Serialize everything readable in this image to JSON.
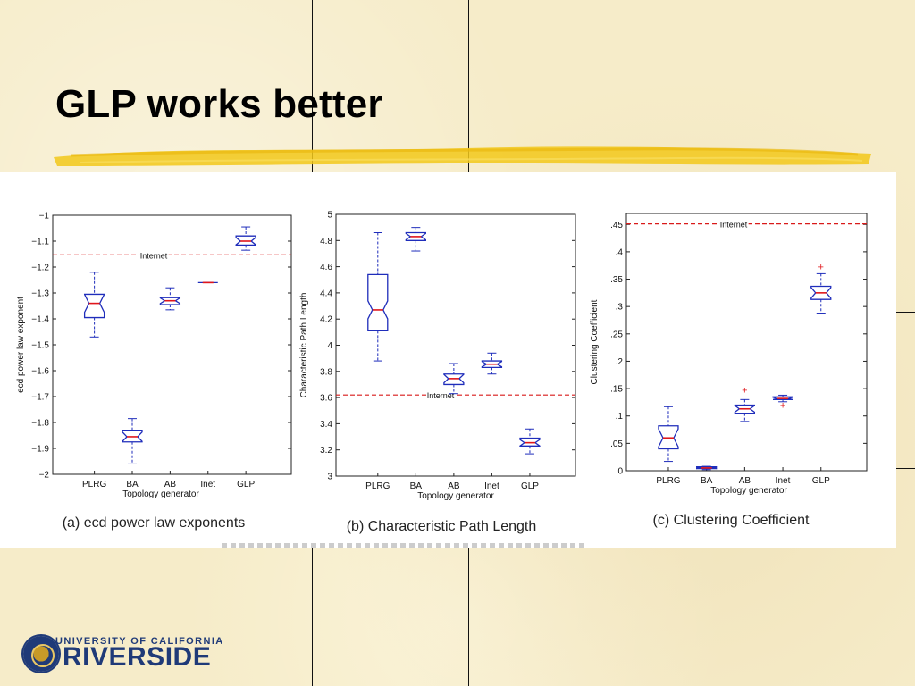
{
  "slide": {
    "title": "GLP works better",
    "footer_logo": {
      "line1": "UNIVERSITY OF CALIFORNIA",
      "line2": "RIVERSIDE"
    }
  },
  "chart_data": [
    {
      "type": "boxplot",
      "caption": "(a) ecd power law exponents",
      "xlabel": "Topology generator",
      "ylabel": "ecd power law exponent",
      "categories": [
        "PLRG",
        "BA",
        "AB",
        "Inet",
        "GLP"
      ],
      "ylim": [
        -2,
        -1
      ],
      "yticks": [
        -1,
        -1.1,
        -1.2,
        -1.3,
        -1.4,
        -1.5,
        -1.6,
        -1.7,
        -1.8,
        -1.9,
        -2
      ],
      "reference": {
        "label": "Internet",
        "value": -1.153
      },
      "boxes": [
        {
          "name": "PLRG",
          "whisker_low": -1.47,
          "q1": -1.395,
          "median": -1.34,
          "q3": -1.305,
          "whisker_high": -1.22,
          "outliers": []
        },
        {
          "name": "BA",
          "whisker_low": -1.96,
          "q1": -1.875,
          "median": -1.855,
          "q3": -1.83,
          "whisker_high": -1.785,
          "outliers": []
        },
        {
          "name": "AB",
          "whisker_low": -1.365,
          "q1": -1.345,
          "median": -1.33,
          "q3": -1.318,
          "whisker_high": -1.28,
          "outliers": []
        },
        {
          "name": "Inet",
          "whisker_low": -1.26,
          "q1": -1.26,
          "median": -1.26,
          "q3": -1.26,
          "whisker_high": -1.26,
          "outliers": []
        },
        {
          "name": "GLP",
          "whisker_low": -1.135,
          "q1": -1.115,
          "median": -1.1,
          "q3": -1.08,
          "whisker_high": -1.045,
          "outliers": []
        }
      ]
    },
    {
      "type": "boxplot",
      "caption": "(b) Characteristic Path Length",
      "xlabel": "Topology generator",
      "ylabel": "Characteristic Path Length",
      "categories": [
        "PLRG",
        "BA",
        "AB",
        "Inet",
        "GLP"
      ],
      "ylim": [
        3,
        5
      ],
      "yticks": [
        3,
        3.2,
        3.4,
        3.6,
        3.8,
        4,
        4.2,
        4.4,
        4.6,
        4.8,
        5
      ],
      "reference": {
        "label": "Internet",
        "value": 3.62
      },
      "boxes": [
        {
          "name": "PLRG",
          "whisker_low": 3.88,
          "q1": 4.11,
          "median": 4.27,
          "q3": 4.54,
          "whisker_high": 4.86,
          "outliers": []
        },
        {
          "name": "BA",
          "whisker_low": 4.72,
          "q1": 4.8,
          "median": 4.83,
          "q3": 4.86,
          "whisker_high": 4.9,
          "outliers": []
        },
        {
          "name": "AB",
          "whisker_low": 3.63,
          "q1": 3.7,
          "median": 3.745,
          "q3": 3.78,
          "whisker_high": 3.86,
          "outliers": []
        },
        {
          "name": "Inet",
          "whisker_low": 3.78,
          "q1": 3.83,
          "median": 3.855,
          "q3": 3.88,
          "whisker_high": 3.94,
          "outliers": []
        },
        {
          "name": "GLP",
          "whisker_low": 3.17,
          "q1": 3.23,
          "median": 3.255,
          "q3": 3.29,
          "whisker_high": 3.36,
          "outliers": []
        }
      ]
    },
    {
      "type": "boxplot",
      "caption": "(c) Clustering Coefficient",
      "xlabel": "Topology generator",
      "ylabel": "Clustering Coefficient",
      "categories": [
        "PLRG",
        "BA",
        "AB",
        "Inet",
        "GLP"
      ],
      "ylim": [
        0,
        0.47
      ],
      "yticks": [
        0,
        0.05,
        0.1,
        0.15,
        0.2,
        0.25,
        0.3,
        0.35,
        0.4,
        0.45
      ],
      "reference": {
        "label": "Internet",
        "value": 0.451
      },
      "boxes": [
        {
          "name": "PLRG",
          "whisker_low": 0.017,
          "q1": 0.04,
          "median": 0.06,
          "q3": 0.082,
          "whisker_high": 0.117,
          "outliers": []
        },
        {
          "name": "BA",
          "whisker_low": 0.002,
          "q1": 0.004,
          "median": 0.005,
          "q3": 0.007,
          "whisker_high": 0.008,
          "outliers": []
        },
        {
          "name": "AB",
          "whisker_low": 0.09,
          "q1": 0.105,
          "median": 0.113,
          "q3": 0.12,
          "whisker_high": 0.13,
          "outliers": [
            0.148
          ]
        },
        {
          "name": "Inet",
          "whisker_low": 0.126,
          "q1": 0.13,
          "median": 0.132,
          "q3": 0.135,
          "whisker_high": 0.138,
          "outliers": [
            0.12
          ]
        },
        {
          "name": "GLP",
          "whisker_low": 0.288,
          "q1": 0.313,
          "median": 0.325,
          "q3": 0.337,
          "whisker_high": 0.36,
          "outliers": [
            0.373
          ]
        }
      ]
    }
  ],
  "colors": {
    "background": "#f6ecc9",
    "highlight": "#f2c81a",
    "box": "#1f2dbb",
    "median": "#e0161b",
    "reference_line": "#d91a1a",
    "panel": "#ffffff"
  }
}
